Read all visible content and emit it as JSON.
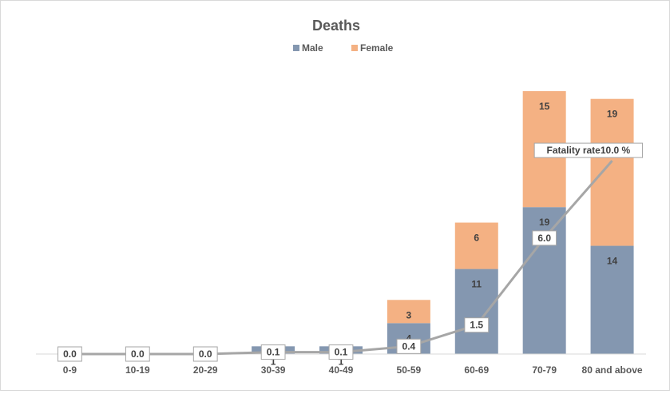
{
  "chart_data": {
    "type": "bar",
    "stacked": true,
    "title": "Deaths",
    "xlabel": "",
    "ylabel": "",
    "categories": [
      "0-9",
      "10-19",
      "20-29",
      "30-39",
      "40-49",
      "50-59",
      "60-69",
      "70-79",
      "80 and above"
    ],
    "series": [
      {
        "name": "Male",
        "values": [
          0,
          0,
          0,
          1,
          1,
          4,
          11,
          19,
          14
        ],
        "color": "#8497b0"
      },
      {
        "name": "Female",
        "values": [
          0,
          0,
          0,
          0,
          0,
          3,
          6,
          15,
          19
        ],
        "color": "#f4b183"
      }
    ],
    "bar_value_labels": {
      "Male": [
        "",
        "",
        "",
        "1",
        "1",
        "4",
        "11",
        "19",
        "14"
      ],
      "Female": [
        "",
        "",
        "",
        "",
        "",
        "3",
        "6",
        "15",
        "19"
      ]
    },
    "line": {
      "values": [
        0.0,
        0.0,
        0.0,
        0.1,
        0.1,
        0.4,
        1.5,
        6.0,
        10.0
      ],
      "labels": [
        "0.0",
        "0.0",
        "0.0",
        "0.1",
        "0.1",
        "0.4",
        "1.5",
        "6.0",
        "Fatality rate10.0 %"
      ],
      "color": "#a6a6a6"
    },
    "ylim": [
      0,
      40
    ],
    "y2lim": [
      0,
      16
    ],
    "grid": false,
    "legend": "top-center"
  }
}
